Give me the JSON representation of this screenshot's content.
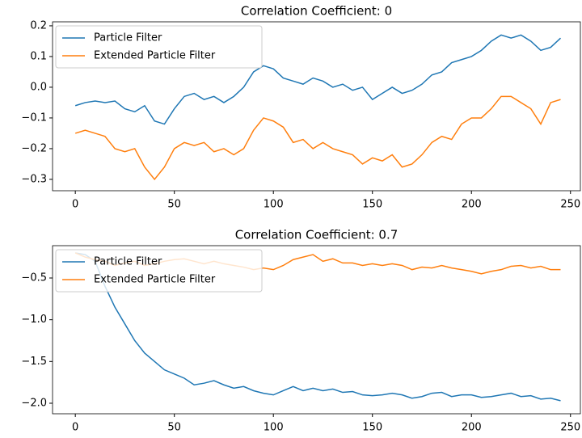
{
  "chart_data": [
    {
      "type": "line",
      "title": "Correlation Coefficient: 0",
      "x": [
        0,
        5,
        10,
        15,
        20,
        25,
        30,
        35,
        40,
        45,
        50,
        55,
        60,
        65,
        70,
        75,
        80,
        85,
        90,
        95,
        100,
        105,
        110,
        115,
        120,
        125,
        130,
        135,
        140,
        145,
        150,
        155,
        160,
        165,
        170,
        175,
        180,
        185,
        190,
        195,
        200,
        205,
        210,
        215,
        220,
        225,
        230,
        235,
        240,
        245
      ],
      "series": [
        {
          "name": "Particle Filter",
          "color": "#1f77b4",
          "values": [
            -0.06,
            -0.05,
            -0.045,
            -0.05,
            -0.045,
            -0.07,
            -0.08,
            -0.06,
            -0.11,
            -0.12,
            -0.07,
            -0.03,
            -0.02,
            -0.04,
            -0.03,
            -0.05,
            -0.03,
            0.0,
            0.05,
            0.07,
            0.06,
            0.03,
            0.02,
            0.01,
            0.03,
            0.02,
            0.0,
            0.01,
            -0.01,
            0.0,
            -0.04,
            -0.02,
            0.0,
            -0.02,
            -0.01,
            0.01,
            0.04,
            0.05,
            0.08,
            0.09,
            0.1,
            0.12,
            0.15,
            0.17,
            0.16,
            0.17,
            0.15,
            0.12,
            0.13,
            0.16
          ]
        },
        {
          "name": "Extended Particle Filter",
          "color": "#ff7f0e",
          "values": [
            -0.15,
            -0.14,
            -0.15,
            -0.16,
            -0.2,
            -0.21,
            -0.2,
            -0.26,
            -0.3,
            -0.26,
            -0.2,
            -0.18,
            -0.19,
            -0.18,
            -0.21,
            -0.2,
            -0.22,
            -0.2,
            -0.14,
            -0.1,
            -0.11,
            -0.13,
            -0.18,
            -0.17,
            -0.2,
            -0.18,
            -0.2,
            -0.21,
            -0.22,
            -0.25,
            -0.23,
            -0.24,
            -0.22,
            -0.26,
            -0.25,
            -0.22,
            -0.18,
            -0.16,
            -0.17,
            -0.12,
            -0.1,
            -0.1,
            -0.07,
            -0.03,
            -0.03,
            -0.05,
            -0.07,
            -0.12,
            -0.05,
            -0.04
          ]
        }
      ],
      "xlim": [
        -11.5,
        255
      ],
      "xticks": [
        0,
        50,
        100,
        150,
        200,
        250
      ],
      "ylim": [
        -0.337,
        0.213
      ],
      "yticks": [
        {
          "value": -0.3,
          "label": "−0.3"
        },
        {
          "value": -0.2,
          "label": "−0.2"
        },
        {
          "value": -0.1,
          "label": "−0.1"
        },
        {
          "value": 0.0,
          "label": "0.0"
        },
        0.1,
        0.2
      ],
      "legend": "upper left"
    },
    {
      "type": "line",
      "title": "Correlation Coefficient: 0.7",
      "x": [
        0,
        5,
        10,
        15,
        20,
        25,
        30,
        35,
        40,
        45,
        50,
        55,
        60,
        65,
        70,
        75,
        80,
        85,
        90,
        95,
        100,
        105,
        110,
        115,
        120,
        125,
        130,
        135,
        140,
        145,
        150,
        155,
        160,
        165,
        170,
        175,
        180,
        185,
        190,
        195,
        200,
        205,
        210,
        215,
        220,
        225,
        230,
        235,
        240,
        245
      ],
      "series": [
        {
          "name": "Particle Filter",
          "color": "#1f77b4",
          "values": [
            -0.2,
            -0.22,
            -0.3,
            -0.6,
            -0.85,
            -1.05,
            -1.25,
            -1.4,
            -1.5,
            -1.6,
            -1.65,
            -1.7,
            -1.78,
            -1.76,
            -1.73,
            -1.78,
            -1.82,
            -1.8,
            -1.85,
            -1.88,
            -1.9,
            -1.85,
            -1.8,
            -1.85,
            -1.82,
            -1.85,
            -1.83,
            -1.87,
            -1.86,
            -1.9,
            -1.91,
            -1.9,
            -1.88,
            -1.9,
            -1.94,
            -1.92,
            -1.88,
            -1.87,
            -1.92,
            -1.9,
            -1.9,
            -1.93,
            -1.92,
            -1.9,
            -1.88,
            -1.92,
            -1.91,
            -1.95,
            -1.94,
            -1.97
          ]
        },
        {
          "name": "Extended Particle Filter",
          "color": "#ff7f0e",
          "values": [
            -0.2,
            -0.25,
            -0.28,
            -0.3,
            -0.35,
            -0.32,
            -0.3,
            -0.35,
            -0.33,
            -0.3,
            -0.28,
            -0.27,
            -0.3,
            -0.33,
            -0.3,
            -0.33,
            -0.35,
            -0.37,
            -0.4,
            -0.38,
            -0.4,
            -0.35,
            -0.28,
            -0.25,
            -0.22,
            -0.3,
            -0.27,
            -0.32,
            -0.32,
            -0.35,
            -0.33,
            -0.35,
            -0.33,
            -0.35,
            -0.4,
            -0.37,
            -0.38,
            -0.35,
            -0.38,
            -0.4,
            -0.42,
            -0.45,
            -0.42,
            -0.4,
            -0.36,
            -0.35,
            -0.38,
            -0.36,
            -0.4,
            -0.4
          ]
        }
      ],
      "xlim": [
        -11.5,
        255
      ],
      "xticks": [
        0,
        50,
        100,
        150,
        200,
        250
      ],
      "ylim": [
        -2.126,
        -0.113
      ],
      "yticks": [
        {
          "value": -2.0,
          "label": "−2.0"
        },
        {
          "value": -1.5,
          "label": "−1.5"
        },
        {
          "value": -1.0,
          "label": "−1.0"
        },
        {
          "value": -0.5,
          "label": "−0.5"
        }
      ],
      "legend": "upper left"
    }
  ]
}
